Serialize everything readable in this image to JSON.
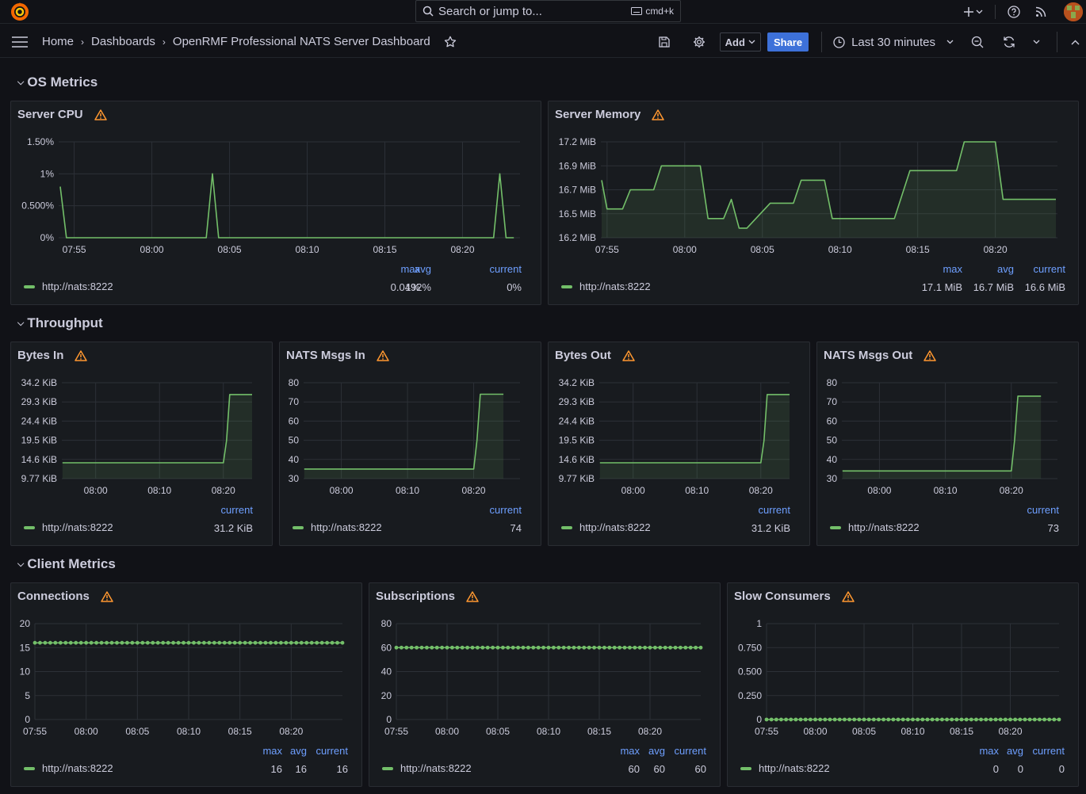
{
  "topbar": {
    "search_placeholder": "Search or jump to...",
    "search_shortcut": "cmd+k"
  },
  "navbar": {
    "breadcrumb": [
      "Home",
      "Dashboards",
      "OpenRMF Professional NATS Server Dashboard"
    ],
    "add_label": "Add",
    "share_label": "Share",
    "time_range": "Last 30 minutes"
  },
  "rows": [
    {
      "title": "OS Metrics"
    },
    {
      "title": "Throughput"
    },
    {
      "title": "Client Metrics"
    }
  ],
  "colors": {
    "series": "#73bf69",
    "accent": "#3d71d9",
    "warning": "#ff9830",
    "legend_header": "#6e9fff"
  },
  "panels": [
    {
      "id": "server_cpu",
      "title": "Server CPU",
      "legend_series": "http://nats:8222",
      "legend_headers": [
        "max",
        "avg",
        "current"
      ],
      "legend_values": [
        "1%",
        "0.0492%",
        "0%"
      ]
    },
    {
      "id": "server_memory",
      "title": "Server Memory",
      "legend_series": "http://nats:8222",
      "legend_headers": [
        "max",
        "avg",
        "current"
      ],
      "legend_values": [
        "17.1 MiB",
        "16.7 MiB",
        "16.6 MiB"
      ]
    },
    {
      "id": "bytes_in",
      "title": "Bytes In",
      "legend_series": "http://nats:8222",
      "legend_headers": [
        "current"
      ],
      "legend_values": [
        "31.2 KiB"
      ]
    },
    {
      "id": "nats_msgs_in",
      "title": "NATS Msgs In",
      "legend_series": "http://nats:8222",
      "legend_headers": [
        "current"
      ],
      "legend_values": [
        "74"
      ]
    },
    {
      "id": "bytes_out",
      "title": "Bytes Out",
      "legend_series": "http://nats:8222",
      "legend_headers": [
        "current"
      ],
      "legend_values": [
        "31.2 KiB"
      ]
    },
    {
      "id": "nats_msgs_out",
      "title": "NATS Msgs Out",
      "legend_series": "http://nats:8222",
      "legend_headers": [
        "current"
      ],
      "legend_values": [
        "73"
      ]
    },
    {
      "id": "connections",
      "title": "Connections",
      "legend_series": "http://nats:8222",
      "legend_headers": [
        "max",
        "avg",
        "current"
      ],
      "legend_values": [
        "16",
        "16",
        "16"
      ]
    },
    {
      "id": "subscriptions",
      "title": "Subscriptions",
      "legend_series": "http://nats:8222",
      "legend_headers": [
        "max",
        "avg",
        "current"
      ],
      "legend_values": [
        "60",
        "60",
        "60"
      ]
    },
    {
      "id": "slow_consumers",
      "title": "Slow Consumers",
      "legend_series": "http://nats:8222",
      "legend_headers": [
        "max",
        "avg",
        "current"
      ],
      "legend_values": [
        "0",
        "0",
        "0"
      ]
    }
  ],
  "chart_data": [
    {
      "id": "server_cpu",
      "type": "line",
      "title": "Server CPU",
      "x_ticks": [
        "07:55",
        "08:00",
        "08:05",
        "08:10",
        "08:15",
        "08:20"
      ],
      "y_ticks": [
        "0%",
        "0.500%",
        "1%",
        "1.50%"
      ],
      "ylim": [
        0,
        1.5
      ],
      "x_range": [
        -1,
        28.7
      ],
      "series": [
        {
          "name": "http://nats:8222",
          "x": [
            -0.9,
            -0.5,
            8.5,
            8.9,
            9.3,
            27.0,
            27.4,
            27.8,
            28.3
          ],
          "y": [
            0.8,
            0,
            0,
            1,
            0,
            0,
            1,
            0,
            0
          ]
        }
      ]
    },
    {
      "id": "server_memory",
      "type": "area",
      "title": "Server Memory",
      "x_ticks": [
        "07:55",
        "08:00",
        "08:05",
        "08:10",
        "08:15",
        "08:20"
      ],
      "y_ticks": [
        "16.2 MiB",
        "16.5 MiB",
        "16.7 MiB",
        "16.9 MiB",
        "17.2 MiB"
      ],
      "ylim": [
        16.2,
        17.2
      ],
      "x_range": [
        -0.4,
        29.0
      ],
      "series": [
        {
          "name": "http://nats:8222",
          "x": [
            -0.35,
            0.0,
            1.0,
            1.5,
            3.0,
            3.5,
            4.0,
            6.0,
            6.5,
            7.5,
            8.0,
            8.5,
            9.0,
            10.5,
            12.0,
            12.5,
            14.0,
            14.5,
            15.5,
            16.0,
            18.5,
            19.5,
            22.5,
            23.0,
            25.0,
            25.5,
            28.9
          ],
          "y": [
            16.8,
            16.5,
            16.5,
            16.7,
            16.7,
            16.95,
            16.95,
            16.95,
            16.4,
            16.4,
            16.6,
            16.3,
            16.3,
            16.56,
            16.56,
            16.8,
            16.8,
            16.4,
            16.4,
            16.4,
            16.4,
            16.9,
            16.9,
            17.2,
            17.2,
            16.6,
            16.6
          ]
        }
      ]
    },
    {
      "id": "bytes_in",
      "type": "area",
      "title": "Bytes In",
      "x_ticks": [
        "08:00",
        "08:10",
        "08:20"
      ],
      "y_ticks": [
        "9.77 KiB",
        "14.6 KiB",
        "19.5 KiB",
        "24.4 KiB",
        "29.3 KiB",
        "34.2 KiB"
      ],
      "ylim": [
        9.77,
        34.2
      ],
      "x_range": [
        -5.3,
        24.5
      ],
      "series": [
        {
          "name": "http://nats:8222",
          "x": [
            -5.2,
            20.0,
            20.5,
            21.0,
            24.5
          ],
          "y": [
            13.8,
            13.8,
            19.5,
            31.2,
            31.2
          ]
        }
      ]
    },
    {
      "id": "nats_msgs_in",
      "type": "area",
      "title": "NATS Msgs In",
      "x_ticks": [
        "08:00",
        "08:10",
        "08:20"
      ],
      "y_ticks": [
        "30",
        "40",
        "50",
        "60",
        "70",
        "80"
      ],
      "ylim": [
        30,
        80
      ],
      "x_range": [
        -5.7,
        27.0
      ],
      "series": [
        {
          "name": "http://nats:8222",
          "x": [
            -5.6,
            20.0,
            20.5,
            21.0,
            24.5
          ],
          "y": [
            35,
            35,
            50,
            74,
            74
          ]
        }
      ]
    },
    {
      "id": "bytes_out",
      "type": "area",
      "title": "Bytes Out",
      "x_ticks": [
        "08:00",
        "08:10",
        "08:20"
      ],
      "y_ticks": [
        "9.77 KiB",
        "14.6 KiB",
        "19.5 KiB",
        "24.4 KiB",
        "29.3 KiB",
        "34.2 KiB"
      ],
      "ylim": [
        9.77,
        34.2
      ],
      "x_range": [
        -5.3,
        24.5
      ],
      "series": [
        {
          "name": "http://nats:8222",
          "x": [
            -5.2,
            20.0,
            20.5,
            21.0,
            24.5
          ],
          "y": [
            13.8,
            13.8,
            19.5,
            31.2,
            31.2
          ]
        }
      ]
    },
    {
      "id": "nats_msgs_out",
      "type": "area",
      "title": "NATS Msgs Out",
      "x_ticks": [
        "08:00",
        "08:10",
        "08:20"
      ],
      "y_ticks": [
        "30",
        "40",
        "50",
        "60",
        "70",
        "80"
      ],
      "ylim": [
        30,
        80
      ],
      "x_range": [
        -5.7,
        27.0
      ],
      "series": [
        {
          "name": "http://nats:8222",
          "x": [
            -5.6,
            20.0,
            20.5,
            21.0,
            24.5
          ],
          "y": [
            34,
            34,
            50,
            73,
            73
          ]
        }
      ]
    },
    {
      "id": "connections",
      "type": "scatter",
      "title": "Connections",
      "x_ticks": [
        "07:55",
        "08:00",
        "08:05",
        "08:10",
        "08:15",
        "08:20"
      ],
      "y_ticks": [
        "0",
        "5",
        "10",
        "15",
        "20"
      ],
      "ylim": [
        0,
        20
      ],
      "x_range": [
        0,
        30
      ],
      "series": [
        {
          "name": "http://nats:8222",
          "x_start": 0,
          "x_end": 30,
          "count": 61,
          "value": 16
        }
      ]
    },
    {
      "id": "subscriptions",
      "type": "scatter",
      "title": "Subscriptions",
      "x_ticks": [
        "07:55",
        "08:00",
        "08:05",
        "08:10",
        "08:15",
        "08:20"
      ],
      "y_ticks": [
        "0",
        "20",
        "40",
        "60",
        "80"
      ],
      "ylim": [
        0,
        80
      ],
      "x_range": [
        0,
        30
      ],
      "series": [
        {
          "name": "http://nats:8222",
          "x_start": 0,
          "x_end": 30,
          "count": 61,
          "value": 60
        }
      ]
    },
    {
      "id": "slow_consumers",
      "type": "scatter",
      "title": "Slow Consumers",
      "x_ticks": [
        "07:55",
        "08:00",
        "08:05",
        "08:10",
        "08:15",
        "08:20"
      ],
      "y_ticks": [
        "0",
        "0.250",
        "0.500",
        "0.750",
        "1"
      ],
      "ylim": [
        0,
        1
      ],
      "x_range": [
        0,
        30
      ],
      "series": [
        {
          "name": "http://nats:8222",
          "x_start": 0,
          "x_end": 30,
          "count": 61,
          "value": 0
        }
      ]
    }
  ]
}
